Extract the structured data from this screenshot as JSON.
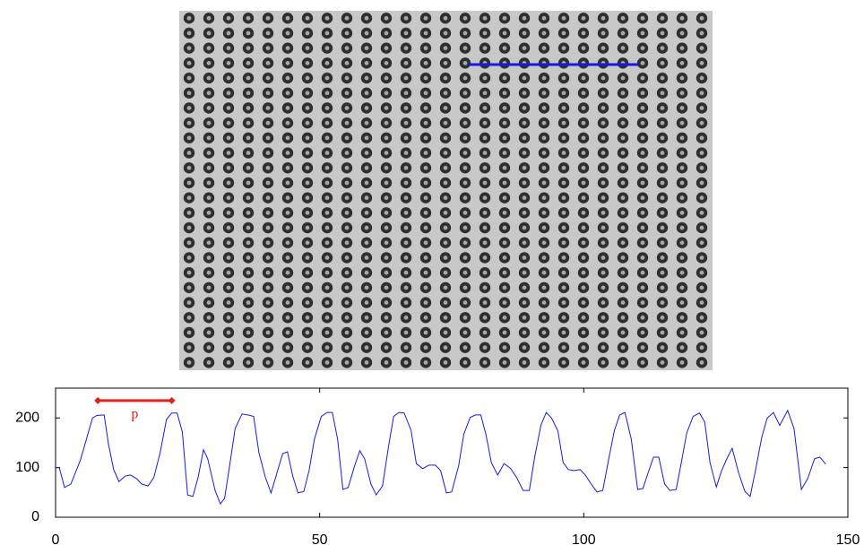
{
  "chart_data": {
    "type": "line",
    "xlim": [
      0,
      150
    ],
    "xticks": [
      0,
      50,
      100,
      150
    ],
    "ylim": [
      0,
      260
    ],
    "yticks": [
      0,
      100,
      200
    ],
    "series": [
      {
        "color": "#1a1adc",
        "x": [
          0,
          0.7,
          1.7,
          2.9,
          4.7,
          7,
          7.8,
          9.2,
          10,
          11,
          12,
          13.2,
          14.2,
          15.3,
          16.3,
          17.5,
          18.6,
          19.8,
          21,
          22,
          23,
          24,
          25,
          26,
          27,
          28,
          28.8,
          30.2,
          31.2,
          32,
          32.9,
          34,
          35.3,
          36.4,
          37.5,
          38.5,
          39.7,
          40.8,
          41.9,
          43,
          43.9,
          44.9,
          45.9,
          47,
          48,
          49,
          50.3,
          51.4,
          52.4,
          53.4,
          54.4,
          55.4,
          56.6,
          57.6,
          58.5,
          59.7,
          60.7,
          61.9,
          63,
          64,
          65,
          66,
          67.3,
          68.3,
          69.5,
          70.7,
          71.9,
          72.9,
          74,
          75,
          76.3,
          77.3,
          78.5,
          79.5,
          80.5,
          81.5,
          82.5,
          83.7,
          84.9,
          86.1,
          87.3,
          88.5,
          89.7,
          90.7,
          91.9,
          92.9,
          93.9,
          95.1,
          96.1,
          97.1,
          98.1,
          99.3,
          100.3,
          101.4,
          102.5,
          103.6,
          104.7,
          105.8,
          106.8,
          107.8,
          109,
          110.2,
          111.2,
          112.2,
          113.2,
          114.2,
          115.3,
          116.3,
          117.5,
          118.5,
          119.5,
          120.7,
          121.9,
          122.9,
          123.9,
          125.1,
          126.1,
          127.1,
          128.1,
          129.3,
          130.5,
          131.5,
          132.5,
          133.7,
          134.7,
          135.9,
          137.1,
          138.6,
          139.8,
          141.2,
          142.4,
          143.7,
          144.7,
          145.8
        ],
        "values": [
          100,
          100,
          60,
          67,
          115,
          200,
          205,
          206,
          148,
          96,
          72,
          83,
          85,
          78,
          67,
          63,
          80,
          130,
          197,
          210,
          210,
          172,
          45,
          42,
          81,
          136,
          118,
          54,
          27,
          38,
          100,
          179,
          208,
          206,
          203,
          130,
          81,
          49,
          89,
          128,
          132,
          83,
          49,
          52,
          94,
          157,
          203,
          211,
          211,
          157,
          56,
          60,
          103,
          134,
          118,
          67,
          45,
          63,
          140,
          203,
          211,
          210,
          175,
          108,
          98,
          105,
          105,
          94,
          49,
          51,
          103,
          168,
          201,
          206,
          206,
          166,
          110,
          85,
          108,
          99,
          80,
          54,
          54,
          121,
          186,
          211,
          200,
          174,
          110,
          96,
          94,
          96,
          85,
          67,
          51,
          54,
          116,
          175,
          206,
          211,
          157,
          56,
          58,
          90,
          121,
          121,
          67,
          54,
          56,
          112,
          170,
          203,
          210,
          192,
          110,
          61,
          94,
          118,
          139,
          90,
          52,
          42,
          94,
          161,
          199,
          211,
          185,
          215,
          179,
          56,
          78,
          118,
          121,
          107
        ]
      }
    ],
    "annotations": [
      {
        "text": "p",
        "color": "#e0201c",
        "x": [
          8,
          22
        ],
        "y": 235
      }
    ]
  }
}
